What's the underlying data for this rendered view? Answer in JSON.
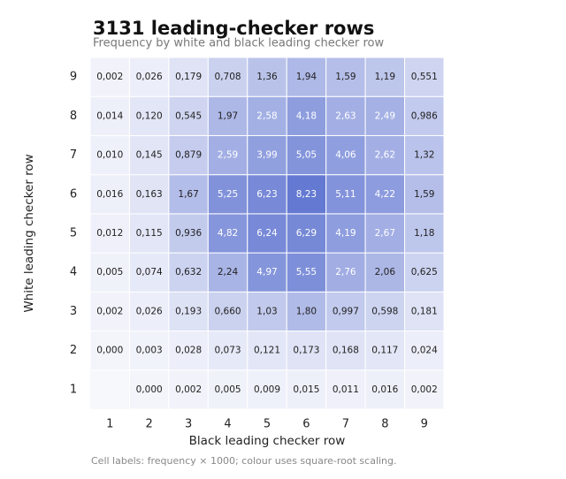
{
  "chart_data": {
    "type": "heatmap",
    "title": "3131 leading-checker rows",
    "subtitle": "Frequency by white and black leading checker row",
    "xlabel": "Black leading checker row",
    "ylabel": "White leading checker row",
    "note": "Cell labels: frequency × 1000; colour uses square-root scaling.",
    "x": [
      1,
      2,
      3,
      4,
      5,
      6,
      7,
      8,
      9
    ],
    "y": [
      1,
      2,
      3,
      4,
      5,
      6,
      7,
      8,
      9
    ],
    "values": [
      [
        null,
        0.0,
        0.002,
        0.005,
        0.009,
        0.015,
        0.011,
        0.016,
        0.002
      ],
      [
        0.0,
        0.003,
        0.028,
        0.073,
        0.121,
        0.173,
        0.168,
        0.117,
        0.024
      ],
      [
        0.002,
        0.026,
        0.193,
        0.66,
        1.03,
        1.8,
        0.997,
        0.598,
        0.181
      ],
      [
        0.005,
        0.074,
        0.632,
        2.24,
        4.97,
        5.55,
        2.76,
        2.06,
        0.625
      ],
      [
        0.012,
        0.115,
        0.936,
        4.82,
        6.24,
        6.29,
        4.19,
        2.67,
        1.18
      ],
      [
        0.016,
        0.163,
        1.67,
        5.25,
        6.23,
        8.23,
        5.11,
        4.22,
        1.59
      ],
      [
        0.01,
        0.145,
        0.879,
        2.59,
        3.99,
        5.05,
        4.06,
        2.62,
        1.32
      ],
      [
        0.014,
        0.12,
        0.545,
        1.97,
        2.58,
        4.18,
        2.63,
        2.49,
        0.986
      ],
      [
        0.002,
        0.026,
        0.179,
        0.708,
        1.36,
        1.94,
        1.59,
        1.19,
        0.551
      ]
    ],
    "value_labels": [
      [
        null,
        "0,000",
        "0,002",
        "0,005",
        "0,009",
        "0,015",
        "0,011",
        "0,016",
        "0,002"
      ],
      [
        "0,000",
        "0,003",
        "0,028",
        "0,073",
        "0,121",
        "0,173",
        "0,168",
        "0,117",
        "0,024"
      ],
      [
        "0,002",
        "0,026",
        "0,193",
        "0,660",
        "1,03",
        "1,80",
        "0,997",
        "0,598",
        "0,181"
      ],
      [
        "0,005",
        "0,074",
        "0,632",
        "2,24",
        "4,97",
        "5,55",
        "2,76",
        "2,06",
        "0,625"
      ],
      [
        "0,012",
        "0,115",
        "0,936",
        "4,82",
        "6,24",
        "6,29",
        "4,19",
        "2,67",
        "1,18"
      ],
      [
        "0,016",
        "0,163",
        "1,67",
        "5,25",
        "6,23",
        "8,23",
        "5,11",
        "4,22",
        "1,59"
      ],
      [
        "0,010",
        "0,145",
        "0,879",
        "2,59",
        "3,99",
        "5,05",
        "4,06",
        "2,62",
        "1,32"
      ],
      [
        "0,014",
        "0,120",
        "0,545",
        "1,97",
        "2,58",
        "4,18",
        "2,63",
        "2,49",
        "0,986"
      ],
      [
        "0,002",
        "0,026",
        "0,179",
        "0,708",
        "1,36",
        "1,94",
        "1,59",
        "1,19",
        "0,551"
      ]
    ],
    "color_scale": "sqrt",
    "colormap": [
      "#f4f5fb",
      "#6479d2"
    ]
  }
}
